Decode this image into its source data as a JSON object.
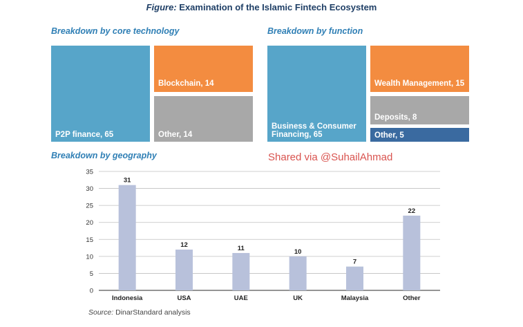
{
  "figure": {
    "title_prefix": "Figure:",
    "title_rest": " Examination of the Islamic Fintech Ecosystem"
  },
  "watermark": "Shared via @SuhailAhmad",
  "source": {
    "prefix": "Source:",
    "rest": " DinarStandard analysis"
  },
  "colors": {
    "teal": "#57a5c9",
    "orange": "#f38c40",
    "grey": "#a8a8a8",
    "navy": "#3a6aa0",
    "bar": "#b8c1db"
  },
  "chart_data": [
    {
      "type": "treemap",
      "title": "Breakdown by core technology",
      "items": [
        {
          "label": "P2P finance, 65",
          "name": "P2P finance",
          "value": 65,
          "color": "#57a5c9"
        },
        {
          "label": "Blockchain, 14",
          "name": "Blockchain",
          "value": 14,
          "color": "#f38c40"
        },
        {
          "label": "Other, 14",
          "name": "Other",
          "value": 14,
          "color": "#a8a8a8"
        }
      ]
    },
    {
      "type": "treemap",
      "title": "Breakdown by function",
      "items": [
        {
          "label_line1": "Business & Consumer",
          "label_line2": "Financing, 65",
          "name": "Business & Consumer Financing",
          "value": 65,
          "color": "#57a5c9"
        },
        {
          "label": "Wealth Management, 15",
          "name": "Wealth Management",
          "value": 15,
          "color": "#f38c40"
        },
        {
          "label": "Deposits, 8",
          "name": "Deposits",
          "value": 8,
          "color": "#a8a8a8"
        },
        {
          "label": "Other, 5",
          "name": "Other",
          "value": 5,
          "color": "#3a6aa0"
        }
      ]
    },
    {
      "type": "bar",
      "title": "Breakdown by geography",
      "categories": [
        "Indonesia",
        "USA",
        "UAE",
        "UK",
        "Malaysia",
        "Other"
      ],
      "values": [
        31,
        12,
        11,
        10,
        7,
        22
      ],
      "ylim": [
        0,
        35
      ],
      "yticks": [
        0,
        5,
        10,
        15,
        20,
        25,
        30,
        35
      ],
      "grid": true,
      "xlabel": "",
      "ylabel": ""
    }
  ]
}
